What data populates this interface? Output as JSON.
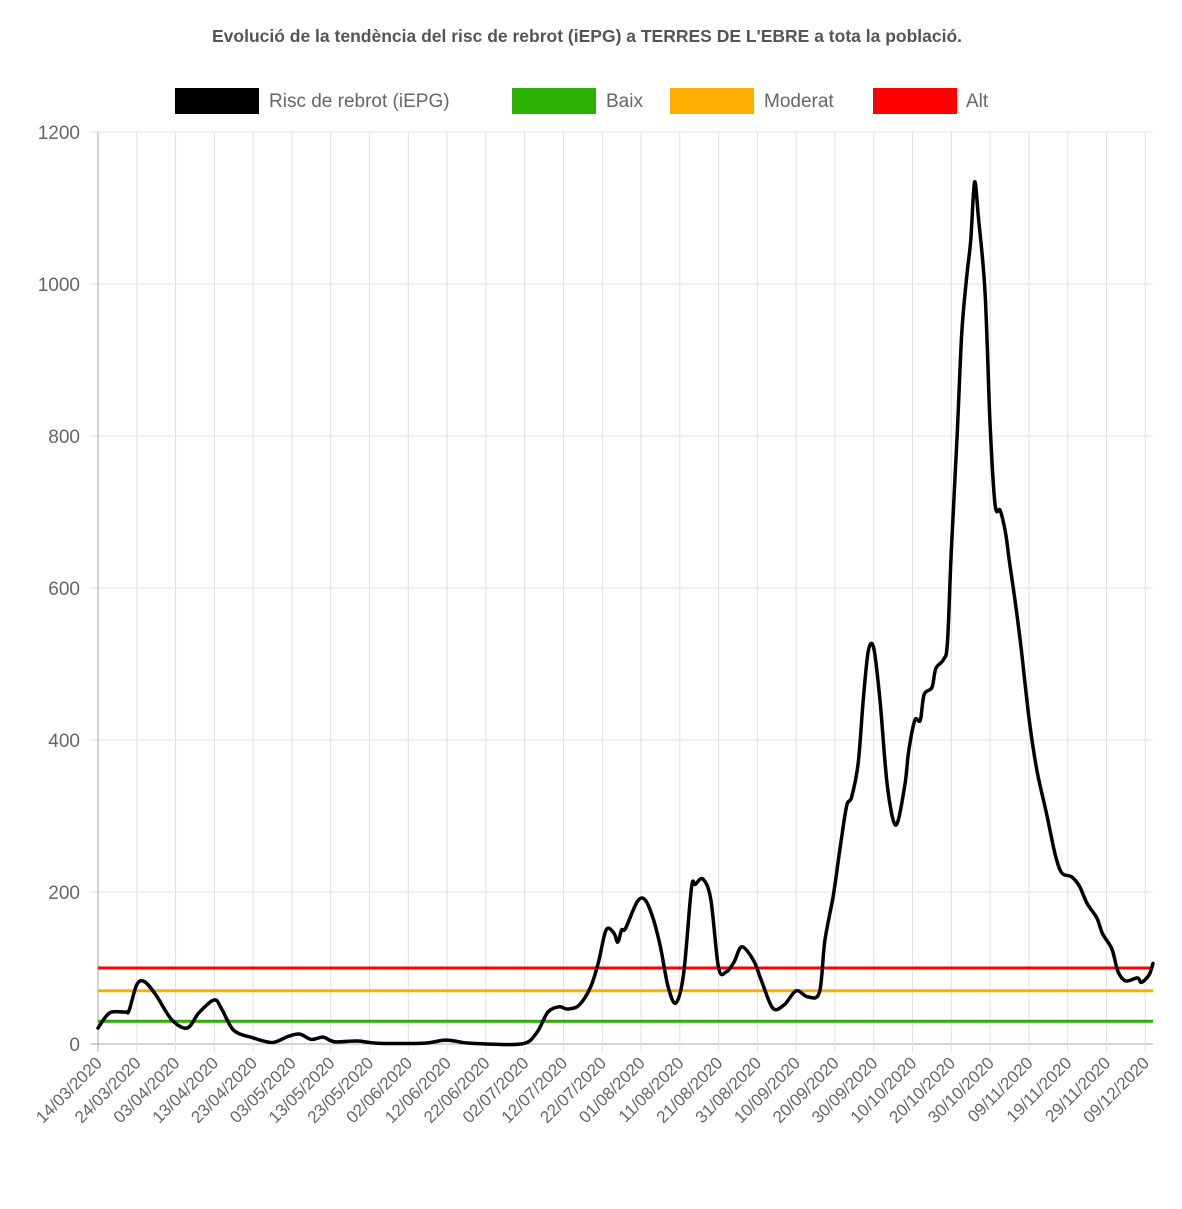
{
  "chart_data": {
    "type": "line",
    "title": "Evolució de la tendència del risc de rebrot (iEPG) a TERRES DE L'EBRE a tota la població.",
    "xlabel": "",
    "ylabel": "",
    "ylim": [
      0,
      1200
    ],
    "yticks": [
      "0",
      "200",
      "400",
      "600",
      "800",
      "1000",
      "1200"
    ],
    "ytick_values": [
      0,
      200,
      400,
      600,
      800,
      1000,
      1200
    ],
    "x_day_range": [
      0,
      272
    ],
    "x_tick_days": [
      0,
      10,
      20,
      30,
      40,
      50,
      60,
      70,
      80,
      90,
      100,
      110,
      120,
      130,
      140,
      150,
      160,
      170,
      180,
      190,
      200,
      210,
      220,
      230,
      240,
      250,
      260,
      270
    ],
    "x_tick_labels": [
      "14/03/2020",
      "24/03/2020",
      "03/04/2020",
      "13/04/2020",
      "23/04/2020",
      "03/05/2020",
      "13/05/2020",
      "23/05/2020",
      "02/06/2020",
      "12/06/2020",
      "22/06/2020",
      "02/07/2020",
      "12/07/2020",
      "22/07/2020",
      "01/08/2020",
      "11/08/2020",
      "21/08/2020",
      "31/08/2020",
      "10/09/2020",
      "20/09/2020",
      "30/09/2020",
      "10/10/2020",
      "20/10/2020",
      "30/10/2020",
      "09/11/2020",
      "19/11/2020",
      "29/11/2020",
      "09/12/2020"
    ],
    "grid": true,
    "legend_position": "top-center",
    "legend": [
      {
        "label": "Risc de rebrot (iEPG)",
        "color": "#000000"
      },
      {
        "label": "Baix",
        "color": "#2ab000"
      },
      {
        "label": "Moderat",
        "color": "#ffad00"
      },
      {
        "label": "Alt",
        "color": "#ff0000"
      }
    ],
    "thresholds": [
      {
        "name": "Baix",
        "value": 30,
        "color": "#2ab000"
      },
      {
        "name": "Moderat",
        "value": 70,
        "color": "#ffad00"
      },
      {
        "name": "Alt",
        "value": 100,
        "color": "#ff0000"
      }
    ],
    "series": [
      {
        "name": "Risc de rebrot (iEPG)",
        "color": "#000000",
        "x_day": [
          0,
          3,
          7,
          8,
          10,
          12,
          15,
          19,
          23,
          26,
          30,
          32,
          35,
          40,
          45,
          49,
          52,
          55,
          58,
          61,
          67,
          72,
          84,
          89,
          92,
          96,
          109,
          113,
          116,
          119,
          121,
          124,
          127,
          129,
          131,
          133,
          134,
          135,
          136,
          139,
          141,
          143,
          145,
          147,
          149,
          151,
          153,
          154,
          156,
          158,
          160,
          162,
          164,
          166,
          169,
          171,
          174,
          177,
          180,
          183,
          186,
          187.4,
          189.6,
          191.3,
          193,
          194.3,
          196,
          197.3,
          198.6,
          200,
          201.6,
          203.5,
          205.7,
          208,
          209,
          210.6,
          212,
          213,
          215,
          216,
          218,
          219,
          220,
          221.5,
          222.7,
          224,
          225,
          226,
          227,
          228.7,
          230,
          231.3,
          232.6,
          234,
          235,
          236.5,
          238,
          240,
          242,
          244.6,
          246.8,
          248.5,
          251,
          253,
          255,
          257.5,
          259,
          261.4,
          263,
          265,
          268,
          269,
          271,
          272
        ],
        "values": [
          21,
          41,
          42,
          44,
          78,
          82,
          64,
          32,
          21,
          41,
          58,
          45,
          18,
          8,
          2,
          10,
          13,
          6,
          9,
          3,
          4,
          1,
          1,
          5,
          4,
          1,
          0,
          14,
          42,
          49,
          46,
          51,
          75,
          107,
          150,
          146,
          134,
          150,
          152,
          187,
          190,
          167,
          128,
          75,
          54,
          93,
          205,
          210,
          217,
          190,
          100,
          95,
          108,
          128,
          110,
          84,
          47,
          52,
          70,
          62,
          68,
          136,
          196,
          257,
          313,
          325,
          370,
          453,
          517,
          521,
          453,
          340,
          288,
          340,
          385,
          426,
          426,
          460,
          469,
          494,
          506,
          528,
          649,
          800,
          936,
          1011,
          1057,
          1134,
          1087,
          989,
          815,
          709,
          702,
          672,
          634,
          581,
          521,
          430,
          362,
          302,
          249,
          225,
          220,
          208,
          185,
          166,
          145,
          125,
          95,
          83,
          87,
          81,
          91,
          106
        ]
      }
    ]
  }
}
